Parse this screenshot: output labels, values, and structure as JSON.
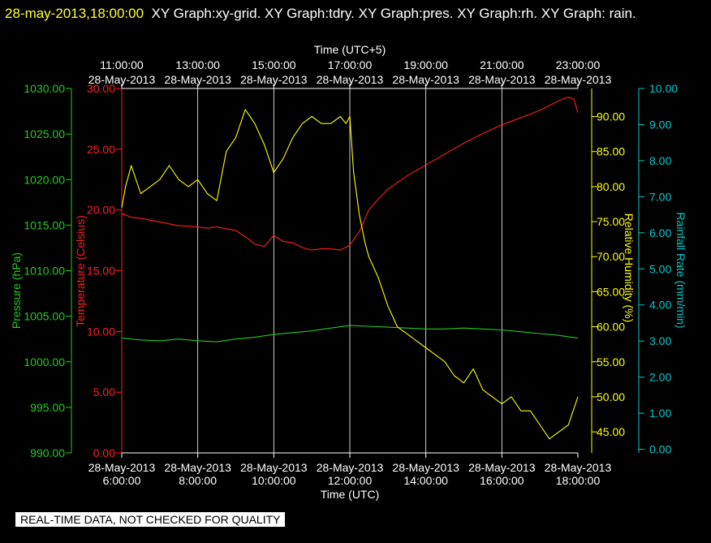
{
  "header": {
    "datetime": "28-may-2013,18:00:00",
    "graphs": "XY Graph:xy-grid.  XY Graph:tdry.  XY Graph:pres.  XY Graph:rh.  XY Graph: rain."
  },
  "footer": {
    "quality_notice": "REAL-TIME DATA, NOT CHECKED FOR QUALITY"
  },
  "colors": {
    "background": "#000000",
    "grid": "#ffffff",
    "temperature": "#ff2020",
    "pressure": "#22cc22",
    "humidity": "#ffff00",
    "rain": "#00cccc"
  },
  "chart_data": {
    "type": "line",
    "title": "",
    "x_range_hours_utc": [
      6,
      18
    ],
    "x_bottom": {
      "label": "Time (UTC)",
      "ticks": [
        {
          "date": "28-May-2013",
          "time": "6:00:00"
        },
        {
          "date": "28-May-2013",
          "time": "8:00:00"
        },
        {
          "date": "28-May-2013",
          "time": "10:00:00"
        },
        {
          "date": "28-May-2013",
          "time": "12:00:00"
        },
        {
          "date": "28-May-2013",
          "time": "14:00:00"
        },
        {
          "date": "28-May-2013",
          "time": "16:00:00"
        },
        {
          "date": "28-May-2013",
          "time": "18:00:00"
        }
      ]
    },
    "x_top": {
      "label": "Time (UTC+5)",
      "ticks": [
        {
          "date": "28-May-2013",
          "time": "11:00:00"
        },
        {
          "date": "28-May-2013",
          "time": "13:00:00"
        },
        {
          "date": "28-May-2013",
          "time": "15:00:00"
        },
        {
          "date": "28-May-2013",
          "time": "17:00:00"
        },
        {
          "date": "28-May-2013",
          "time": "19:00:00"
        },
        {
          "date": "28-May-2013",
          "time": "21:00:00"
        },
        {
          "date": "28-May-2013",
          "time": "23:00:00"
        }
      ]
    },
    "grid": true,
    "axes": {
      "pressure": {
        "label": "Pressure (hPa)",
        "range": [
          990,
          1030
        ],
        "ticks": [
          "990.00",
          "995.00",
          "1000.00",
          "1005.00",
          "1010.00",
          "1015.00",
          "1020.00",
          "1025.00",
          "1030.00"
        ]
      },
      "temperature": {
        "label": "Temperature (Celsius)",
        "range": [
          0,
          30
        ],
        "ticks": [
          "0.00",
          "5.00",
          "10.00",
          "15.00",
          "20.00",
          "25.00",
          "30.00"
        ]
      },
      "humidity": {
        "label": "Relative Humidity (%)",
        "range": [
          42,
          94
        ],
        "ticks": [
          "45.00",
          "50.00",
          "55.00",
          "60.00",
          "65.00",
          "70.00",
          "75.00",
          "80.00",
          "85.00",
          "90.00"
        ]
      },
      "rain": {
        "label": "Rainfall Rate (mm/min)",
        "range": [
          -0.1,
          10
        ],
        "ticks": [
          "0.00",
          "1.00",
          "2.00",
          "3.00",
          "4.00",
          "5.00",
          "6.00",
          "7.00",
          "8.00",
          "9.00",
          "10.00"
        ]
      }
    },
    "series": [
      {
        "key": "temperature",
        "x": [
          6,
          6.25,
          6.5,
          7,
          7.5,
          8,
          8.25,
          8.5,
          9,
          9.25,
          9.5,
          9.75,
          10,
          10.25,
          10.5,
          10.75,
          11,
          11.25,
          11.5,
          11.75,
          12,
          12.25,
          12.5,
          12.75,
          13,
          13.5,
          14,
          14.5,
          15,
          15.5,
          16,
          16.5,
          17,
          17.25,
          17.5,
          17.75,
          17.9,
          18
        ],
        "y": [
          19.7,
          19.4,
          19.3,
          19.0,
          18.7,
          18.6,
          18.5,
          18.6,
          18.3,
          17.8,
          17.2,
          17.0,
          17.9,
          17.4,
          17.3,
          16.9,
          16.7,
          16.8,
          16.8,
          16.7,
          17.1,
          18.2,
          20.0,
          20.9,
          21.7,
          22.8,
          23.7,
          24.6,
          25.5,
          26.3,
          27.0,
          27.6,
          28.2,
          28.6,
          29.0,
          29.3,
          29.1,
          28.0
        ]
      },
      {
        "key": "pressure",
        "x": [
          6,
          6.5,
          7,
          7.5,
          8,
          8.5,
          9,
          9.5,
          10,
          10.5,
          11,
          11.5,
          12,
          12.5,
          13,
          13.5,
          14,
          14.5,
          15,
          15.5,
          16,
          16.5,
          17,
          17.5,
          18
        ],
        "y": [
          1002.6,
          1002.4,
          1002.3,
          1002.5,
          1002.3,
          1002.2,
          1002.5,
          1002.7,
          1003.0,
          1003.2,
          1003.4,
          1003.7,
          1004.0,
          1003.9,
          1003.8,
          1003.7,
          1003.6,
          1003.6,
          1003.7,
          1003.6,
          1003.5,
          1003.3,
          1003.1,
          1002.9,
          1002.6
        ]
      },
      {
        "key": "humidity",
        "x": [
          6,
          6.1,
          6.25,
          6.5,
          6.75,
          7,
          7.25,
          7.5,
          7.75,
          8,
          8.25,
          8.5,
          8.75,
          9,
          9.25,
          9.5,
          9.75,
          10,
          10.25,
          10.5,
          10.75,
          11,
          11.25,
          11.5,
          11.75,
          11.9,
          12,
          12.1,
          12.25,
          12.4,
          12.5,
          12.75,
          13,
          13.25,
          13.5,
          13.75,
          14,
          14.25,
          14.5,
          14.75,
          15,
          15.25,
          15.5,
          15.75,
          16,
          16.25,
          16.5,
          16.75,
          17,
          17.25,
          17.5,
          17.75,
          18
        ],
        "y": [
          77,
          80,
          83,
          79,
          80,
          81,
          83,
          81,
          80,
          81,
          79,
          78,
          85,
          87,
          91,
          89,
          86,
          82,
          84,
          87,
          89,
          90,
          89,
          89,
          90,
          89,
          90,
          82,
          76,
          72,
          70,
          67,
          63,
          60,
          59,
          58,
          57,
          56,
          55,
          53,
          52,
          54,
          51,
          50,
          49,
          50,
          48,
          48,
          46,
          44,
          45,
          46,
          50
        ]
      },
      {
        "key": "rain",
        "x": [
          6,
          18
        ],
        "y": [
          0,
          0
        ]
      }
    ]
  }
}
